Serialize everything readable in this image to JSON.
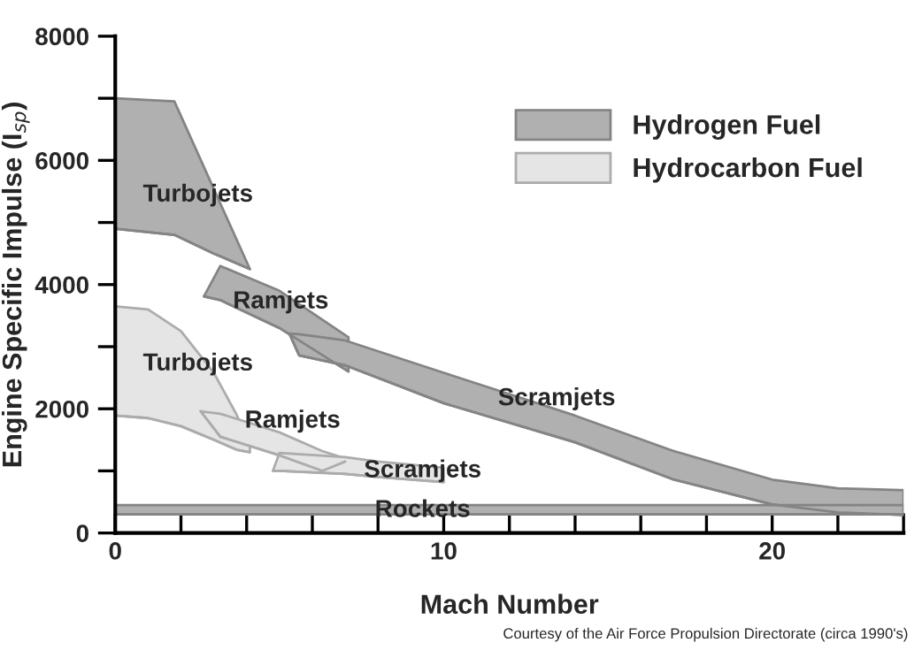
{
  "chart_data": {
    "type": "line",
    "xlabel": "Mach Number",
    "ylabel": "Engine Specific Impulse (I$_{sp}$)",
    "xlim": [
      0,
      24
    ],
    "ylim": [
      0,
      8000
    ],
    "xticks": [
      0,
      {
        "value": 2,
        "label": null
      },
      {
        "value": 4,
        "label": null
      },
      {
        "value": 6,
        "label": null
      },
      {
        "value": 8,
        "label": null
      },
      10,
      {
        "value": 12,
        "label": null
      },
      {
        "value": 14,
        "label": null
      },
      {
        "value": 16,
        "label": null
      },
      {
        "value": 18,
        "label": null
      },
      20,
      {
        "value": 22,
        "label": null
      },
      {
        "value": 24,
        "label": null
      }
    ],
    "yticks": [
      0,
      {
        "value": 1000,
        "label": null
      },
      2000,
      {
        "value": 3000,
        "label": null
      },
      4000,
      {
        "value": 5000,
        "label": null
      },
      6000,
      {
        "value": 7000,
        "label": null
      },
      8000
    ],
    "grid": false,
    "legend": "top right",
    "series": [
      {
        "name": "Hydrogen Fuel",
        "color": "#848484",
        "x": [
          0,
          1.8,
          3,
          4.1
        ],
        "values": [
          4900,
          4800,
          4500,
          4250
        ],
        "lower": [
          4900,
          4800,
          4500,
          4250
        ],
        "upper": [
          7000,
          6950,
          5540,
          4250
        ]
      },
      {
        "color": "#848484",
        "x": [
          2.7,
          3.2,
          5,
          7.1
        ],
        "values": [
          3810,
          3750,
          3300,
          2600
        ],
        "lower": [
          3810,
          3750,
          3300,
          2600
        ],
        "upper": [
          3810,
          4300,
          3900,
          3150
        ]
      },
      {
        "color": "#848484",
        "x": [
          5.3,
          5.6,
          7,
          10,
          14,
          17,
          20,
          22,
          24
        ],
        "values": [
          3210,
          2860,
          2700,
          2090,
          1460,
          860,
          460,
          330,
          290
        ],
        "lower": [
          3210,
          2860,
          2700,
          2090,
          1460,
          860,
          460,
          330,
          290
        ],
        "upper": [
          3210,
          3200,
          3100,
          2580,
          1890,
          1320,
          860,
          720,
          690
        ]
      },
      {
        "name": "Hydrocarbon Fuel",
        "color": "#acacac",
        "x": [
          0,
          1,
          2,
          3,
          3.7,
          4.1
        ],
        "values": [
          1890,
          1850,
          1720,
          1500,
          1340,
          1300
        ],
        "lower": [
          1890,
          1850,
          1720,
          1500,
          1340,
          1300
        ],
        "upper": [
          3650,
          3600,
          3250,
          2580,
          1900,
          1400
        ]
      },
      {
        "color": "#acacac",
        "x": [
          2.6,
          3.2,
          5,
          6.3,
          7.0
        ],
        "values": [
          1960,
          1550,
          1250,
          1000,
          1150
        ],
        "lower": [
          1960,
          1550,
          1250,
          1000,
          1150
        ],
        "upper": [
          1960,
          1920,
          1620,
          1320,
          1200
        ]
      },
      {
        "color": "#acacac",
        "x": [
          4.8,
          5,
          7,
          8,
          10
        ],
        "values": [
          1000,
          1000,
          950,
          900,
          820
        ],
        "lower": [
          1000,
          1000,
          950,
          900,
          820
        ],
        "upper": [
          1000,
          1290,
          1220,
          1150,
          1050
        ]
      },
      {
        "color": "#848484",
        "x": [
          0,
          12,
          24
        ],
        "values": [
          300,
          300,
          300
        ],
        "lower": [
          300,
          300,
          300
        ],
        "upper": [
          450,
          450,
          450
        ]
      }
    ],
    "annotations": [
      "Turbojets",
      "Ramjets",
      "Scramjets",
      "Turbojets",
      "Ramjets",
      "Scramjets",
      "Rockets",
      "Courtesy of the Air Force Propulsion Directorate (circa 1990's)"
    ]
  }
}
